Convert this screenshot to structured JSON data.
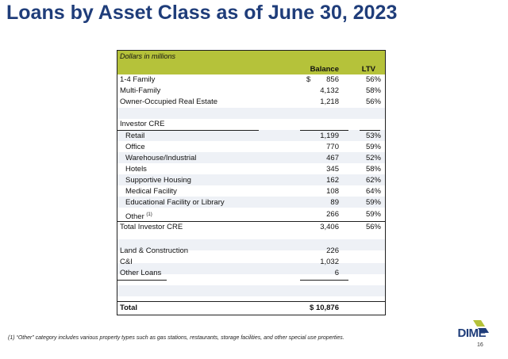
{
  "title": "Loans by Asset Class as of June 30, 2023",
  "table": {
    "subtitle": "Dollars in millions",
    "headers": {
      "balance": "Balance",
      "ltv": "LTV"
    },
    "rows": {
      "family14": {
        "label": "1-4 Family",
        "dollar": "$",
        "balance": "856",
        "ltv": "56%"
      },
      "multifamily": {
        "label": "Multi-Family",
        "balance": "4,132",
        "ltv": "58%"
      },
      "owner_occupied": {
        "label": "Owner-Occupied Real Estate",
        "balance": "1,218",
        "ltv": "56%"
      },
      "investor_cre_header": {
        "label": "Investor CRE"
      },
      "retail": {
        "label": "Retail",
        "balance": "1,199",
        "ltv": "53%"
      },
      "office": {
        "label": "Office",
        "balance": "770",
        "ltv": "59%"
      },
      "warehouse": {
        "label": "Warehouse/Industrial",
        "balance": "467",
        "ltv": "52%"
      },
      "hotels": {
        "label": "Hotels",
        "balance": "345",
        "ltv": "58%"
      },
      "supportive": {
        "label": "Supportive Housing",
        "balance": "162",
        "ltv": "62%"
      },
      "medical": {
        "label": "Medical Facility",
        "balance": "108",
        "ltv": "64%"
      },
      "educational": {
        "label": "Educational Facility or Library",
        "balance": "89",
        "ltv": "59%"
      },
      "other": {
        "label": "Other",
        "footnote_marker": "(1)",
        "balance": "266",
        "ltv": "59%"
      },
      "total_investor_cre": {
        "label": "Total Investor CRE",
        "balance": "3,406",
        "ltv": "56%"
      },
      "land_construction": {
        "label": "Land & Construction",
        "balance": "226"
      },
      "ci": {
        "label": "C&I",
        "balance": "1,032"
      },
      "other_loans": {
        "label": "Other Loans",
        "balance": "6"
      },
      "total": {
        "label": "Total",
        "balance": "$ 10,876"
      }
    }
  },
  "footnote": "(1) “Other” category includes various property types such as gas stations, restaurants, storage facilities, and other special use properties.",
  "logo": {
    "text": "DIME",
    "color": "#1f3d7a",
    "accent": "#b5c23a"
  },
  "page_number": "16",
  "colors": {
    "title": "#1f3d7a",
    "band": "#b5c23a",
    "shade": "#eef1f6"
  }
}
